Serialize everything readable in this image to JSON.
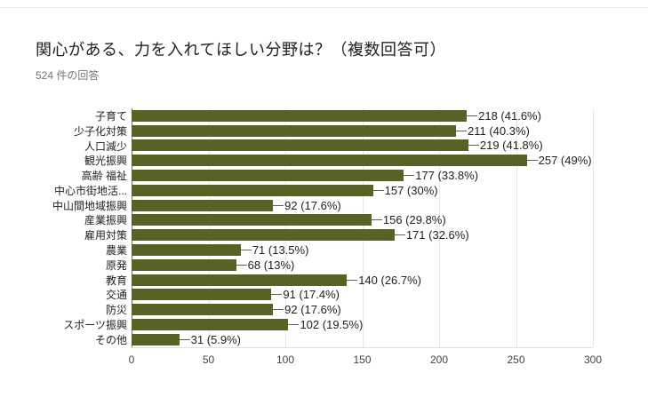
{
  "page": {
    "title": "関心がある、力を入れてほしい分野は？（複数回答可）",
    "subtitle": "524 件の回答"
  },
  "colors": {
    "bar": "#5a6125",
    "axis_line": "#757575",
    "gridline": "#e8e8e8",
    "plot_bottom_border": "#e0e0e0",
    "connector": "#616161",
    "title_text": "#212121",
    "subtitle_text": "#757575",
    "category_text": "#212121",
    "value_label_text": "#212121",
    "tick_text": "#444444",
    "top_divider": "#e8eaed"
  },
  "chart_data": {
    "type": "bar",
    "orientation": "horizontal",
    "title": "関心がある、力を入れてほしい分野は？（複数回答可）",
    "subtitle": "524 件の回答",
    "categories": [
      "子育て",
      "少子化対策",
      "人口減少",
      "観光振興",
      "高齢 福祉",
      "中心市街地活...",
      "中山間地域振興",
      "産業振興",
      "雇用対策",
      "農業",
      "原発",
      "教育",
      "交通",
      "防災",
      "スポーツ振興",
      "その他"
    ],
    "values": [
      218,
      211,
      219,
      257,
      177,
      157,
      92,
      156,
      171,
      71,
      68,
      140,
      91,
      92,
      102,
      31
    ],
    "value_labels": [
      "218 (41.6%)",
      "211 (40.3%)",
      "219 (41.8%)",
      "257 (49%)",
      "177 (33.8%)",
      "157 (30%)",
      "92 (17.6%)",
      "156 (29.8%)",
      "171 (32.6%)",
      "71 (13.5%)",
      "68 (13%)",
      "140 (26.7%)",
      "91 (17.4%)",
      "92 (17.6%)",
      "102 (19.5%)",
      "31 (5.9%)"
    ],
    "x_ticks": [
      0,
      50,
      100,
      150,
      200,
      250,
      300
    ],
    "xlim": [
      0,
      300
    ],
    "grid": true,
    "legend": "none",
    "xlabel": "",
    "ylabel": ""
  }
}
